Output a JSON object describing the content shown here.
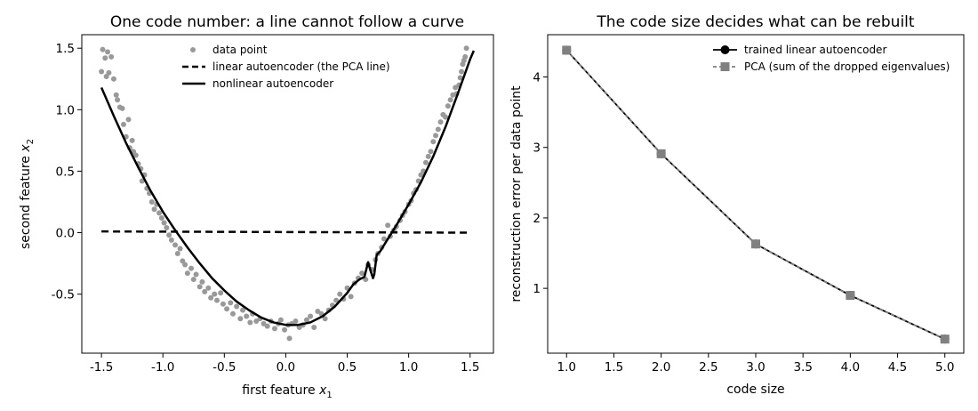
{
  "chart_data": [
    {
      "type": "scatter",
      "title": "One code number: a line cannot follow a curve",
      "xlabel": "first feature",
      "xlabel_subscript": "1",
      "ylabel": "second feature",
      "ylabel_subscript": "2",
      "xlim": [
        -1.66,
        1.69
      ],
      "ylim": [
        -0.98,
        1.61
      ],
      "xticks": [
        "-1.5",
        "-1.0",
        "-0.5",
        "0.0",
        "0.5",
        "1.0",
        "1.5"
      ],
      "xtick_values": [
        -1.5,
        -1.0,
        -0.5,
        0.0,
        0.5,
        1.0,
        1.5
      ],
      "yticks": [
        "-0.5",
        "0.0",
        "0.5",
        "1.0",
        "1.5"
      ],
      "ytick_values": [
        -0.5,
        0.0,
        0.5,
        1.0,
        1.5
      ],
      "legend": {
        "placement": "top-center",
        "entries": [
          "data point",
          "linear autoencoder (the PCA line)",
          "nonlinear autoencoder"
        ]
      },
      "colors": {
        "points": "#999999",
        "lines": "#000000"
      },
      "series": [
        {
          "name": "data point",
          "kind": "points",
          "x": [
            -1.5,
            -1.49,
            -1.47,
            -1.46,
            -1.45,
            -1.44,
            -1.42,
            -1.4,
            -1.38,
            -1.37,
            -1.35,
            -1.33,
            -1.32,
            -1.3,
            -1.28,
            -1.27,
            -1.25,
            -1.24,
            -1.22,
            -1.2,
            -1.18,
            -1.17,
            -1.15,
            -1.13,
            -1.11,
            -1.09,
            -1.07,
            -1.05,
            -1.03,
            -1.01,
            -0.99,
            -0.97,
            -0.95,
            -0.93,
            -0.9,
            -0.88,
            -0.86,
            -0.84,
            -0.82,
            -0.8,
            -0.77,
            -0.75,
            -0.73,
            -0.7,
            -0.68,
            -0.66,
            -0.63,
            -0.61,
            -0.58,
            -0.56,
            -0.53,
            -0.51,
            -0.48,
            -0.45,
            -0.43,
            -0.4,
            -0.37,
            -0.35,
            -0.32,
            -0.29,
            -0.27,
            -0.24,
            -0.21,
            -0.18,
            -0.15,
            -0.12,
            -0.09,
            -0.06,
            -0.04,
            -0.01,
            0.02,
            0.03,
            0.05,
            0.08,
            0.11,
            0.14,
            0.17,
            0.2,
            0.23,
            0.26,
            0.29,
            0.32,
            0.35,
            0.38,
            0.41,
            0.44,
            0.47,
            0.5,
            0.53,
            0.56,
            0.59,
            0.62,
            0.65,
            0.67,
            0.7,
            0.73,
            0.75,
            0.78,
            0.8,
            0.83,
            0.85,
            0.88,
            0.9,
            0.93,
            0.95,
            0.97,
            1.0,
            1.02,
            1.04,
            1.06,
            1.08,
            1.1,
            1.12,
            1.14,
            1.16,
            1.18,
            1.2,
            1.22,
            1.24,
            1.26,
            1.28,
            1.3,
            1.32,
            1.34,
            1.36,
            1.38,
            1.39,
            1.41,
            1.42,
            1.43,
            1.44,
            1.45,
            1.46,
            1.47
          ],
          "y": [
            1.31,
            1.49,
            1.42,
            1.27,
            1.47,
            1.3,
            1.43,
            1.25,
            1.12,
            1.08,
            1.02,
            1.01,
            0.88,
            0.78,
            0.92,
            0.69,
            0.75,
            0.66,
            0.63,
            0.56,
            0.52,
            0.42,
            0.47,
            0.36,
            0.32,
            0.25,
            0.19,
            0.23,
            0.16,
            0.12,
            0.08,
            0.04,
            -0.02,
            -0.06,
            -0.1,
            -0.17,
            -0.13,
            -0.23,
            -0.26,
            -0.33,
            -0.29,
            -0.38,
            -0.34,
            -0.44,
            -0.4,
            -0.48,
            -0.45,
            -0.53,
            -0.5,
            -0.55,
            -0.49,
            -0.58,
            -0.62,
            -0.57,
            -0.66,
            -0.6,
            -0.7,
            -0.63,
            -0.68,
            -0.73,
            -0.66,
            -0.72,
            -0.7,
            -0.74,
            -0.76,
            -0.72,
            -0.78,
            -0.74,
            -0.71,
            -0.79,
            -0.75,
            -0.86,
            -0.74,
            -0.72,
            -0.77,
            -0.75,
            -0.71,
            -0.68,
            -0.77,
            -0.64,
            -0.66,
            -0.7,
            -0.63,
            -0.59,
            -0.55,
            -0.5,
            -0.54,
            -0.45,
            -0.52,
            -0.41,
            -0.37,
            -0.33,
            -0.38,
            -0.26,
            -0.3,
            -0.22,
            -0.17,
            -0.12,
            -0.05,
            0.06,
            -0.03,
            0.02,
            0.05,
            0.1,
            0.14,
            0.17,
            0.23,
            0.26,
            0.32,
            0.35,
            0.42,
            0.47,
            0.5,
            0.57,
            0.62,
            0.66,
            0.74,
            0.79,
            0.84,
            0.9,
            0.96,
            0.94,
            1.03,
            1.08,
            1.12,
            1.18,
            1.13,
            1.2,
            1.26,
            1.31,
            1.37,
            1.4,
            1.43,
            1.5
          ]
        },
        {
          "name": "linear autoencoder (the PCA line)",
          "kind": "dashed-line",
          "x": [
            -1.5,
            1.5
          ],
          "y": [
            0.01,
            0.0
          ]
        },
        {
          "name": "nonlinear autoencoder",
          "kind": "line",
          "x": [
            -1.5,
            -1.4,
            -1.3,
            -1.2,
            -1.1,
            -1.0,
            -0.9,
            -0.8,
            -0.7,
            -0.6,
            -0.5,
            -0.4,
            -0.3,
            -0.2,
            -0.1,
            0.0,
            0.1,
            0.2,
            0.3,
            0.4,
            0.5,
            0.55,
            0.6,
            0.64,
            0.67,
            0.69,
            0.71,
            0.72,
            0.74,
            0.77,
            0.8,
            0.85,
            0.9,
            1.0,
            1.1,
            1.2,
            1.3,
            1.4,
            1.5,
            1.53
          ],
          "y": [
            1.18,
            0.95,
            0.73,
            0.53,
            0.34,
            0.17,
            0.02,
            -0.12,
            -0.25,
            -0.37,
            -0.47,
            -0.56,
            -0.63,
            -0.69,
            -0.73,
            -0.75,
            -0.75,
            -0.73,
            -0.68,
            -0.6,
            -0.49,
            -0.42,
            -0.38,
            -0.36,
            -0.24,
            -0.31,
            -0.37,
            -0.34,
            -0.18,
            -0.15,
            -0.1,
            -0.02,
            0.06,
            0.23,
            0.41,
            0.62,
            0.86,
            1.13,
            1.41,
            1.48
          ]
        }
      ]
    },
    {
      "type": "line",
      "title": "The code size decides what can be rebuilt",
      "xlabel": "code size",
      "ylabel": "reconstruction error per data point",
      "xlim": [
        0.8,
        5.2
      ],
      "ylim": [
        0.08,
        4.6
      ],
      "xticks": [
        "1.0",
        "1.5",
        "2.0",
        "2.5",
        "3.0",
        "3.5",
        "4.0",
        "4.5",
        "5.0"
      ],
      "xtick_values": [
        1.0,
        1.5,
        2.0,
        2.5,
        3.0,
        3.5,
        4.0,
        4.5,
        5.0
      ],
      "yticks": [
        "1",
        "2",
        "3",
        "4"
      ],
      "ytick_values": [
        1,
        2,
        3,
        4
      ],
      "legend": {
        "placement": "top-right",
        "entries": [
          "trained linear autoencoder",
          "PCA (sum of the dropped eigenvalues)"
        ]
      },
      "colors": {
        "linear": "#000000",
        "pca": "#808080"
      },
      "categories": [
        1,
        2,
        3,
        4,
        5
      ],
      "series": [
        {
          "name": "trained linear autoencoder",
          "marker": "circle",
          "values": [
            4.38,
            2.91,
            1.63,
            0.9,
            0.28
          ]
        },
        {
          "name": "PCA (sum of the dropped eigenvalues)",
          "marker": "square",
          "dashed": true,
          "values": [
            4.38,
            2.91,
            1.63,
            0.9,
            0.28
          ]
        }
      ]
    }
  ]
}
